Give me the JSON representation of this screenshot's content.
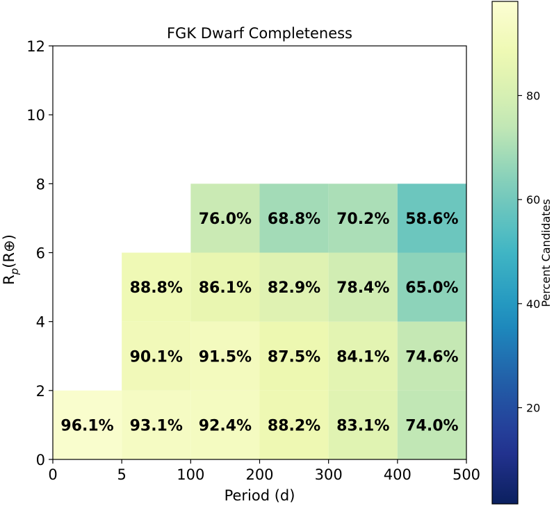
{
  "chart_data": {
    "type": "heatmap",
    "title": "FGK Dwarf Completeness",
    "xlabel": "Period (d)",
    "ylabel": "R_p(R_⊕)",
    "x_tick_labels": [
      "0",
      "5",
      "100",
      "200",
      "300",
      "400",
      "500"
    ],
    "y_tick_labels": [
      "0",
      "2",
      "4",
      "6",
      "8",
      "10",
      "12"
    ],
    "ylim": [
      0,
      12
    ],
    "colormap": "YlGnBu_r",
    "colorbar": {
      "label": "Percent Candidates",
      "ticks": [
        "20",
        "40",
        "60",
        "80"
      ],
      "range": [
        0,
        100
      ]
    },
    "cells": [
      {
        "xbin": 0,
        "ybin": 0,
        "value": 96.1,
        "label": "96.1%"
      },
      {
        "xbin": 1,
        "ybin": 0,
        "value": 93.1,
        "label": "93.1%"
      },
      {
        "xbin": 2,
        "ybin": 0,
        "value": 92.4,
        "label": "92.4%"
      },
      {
        "xbin": 3,
        "ybin": 0,
        "value": 88.2,
        "label": "88.2%"
      },
      {
        "xbin": 4,
        "ybin": 0,
        "value": 83.1,
        "label": "83.1%"
      },
      {
        "xbin": 5,
        "ybin": 0,
        "value": 74.0,
        "label": "74.0%"
      },
      {
        "xbin": 1,
        "ybin": 1,
        "value": 90.1,
        "label": "90.1%"
      },
      {
        "xbin": 2,
        "ybin": 1,
        "value": 91.5,
        "label": "91.5%"
      },
      {
        "xbin": 3,
        "ybin": 1,
        "value": 87.5,
        "label": "87.5%"
      },
      {
        "xbin": 4,
        "ybin": 1,
        "value": 84.1,
        "label": "84.1%"
      },
      {
        "xbin": 5,
        "ybin": 1,
        "value": 74.6,
        "label": "74.6%"
      },
      {
        "xbin": 1,
        "ybin": 2,
        "value": 88.8,
        "label": "88.8%"
      },
      {
        "xbin": 2,
        "ybin": 2,
        "value": 86.1,
        "label": "86.1%"
      },
      {
        "xbin": 3,
        "ybin": 2,
        "value": 82.9,
        "label": "82.9%"
      },
      {
        "xbin": 4,
        "ybin": 2,
        "value": 78.4,
        "label": "78.4%"
      },
      {
        "xbin": 5,
        "ybin": 2,
        "value": 65.0,
        "label": "65.0%"
      },
      {
        "xbin": 2,
        "ybin": 3,
        "value": 76.0,
        "label": "76.0%"
      },
      {
        "xbin": 3,
        "ybin": 3,
        "value": 68.8,
        "label": "68.8%"
      },
      {
        "xbin": 4,
        "ybin": 3,
        "value": 70.2,
        "label": "70.2%"
      },
      {
        "xbin": 5,
        "ybin": 3,
        "value": 58.6,
        "label": "58.6%"
      }
    ]
  }
}
